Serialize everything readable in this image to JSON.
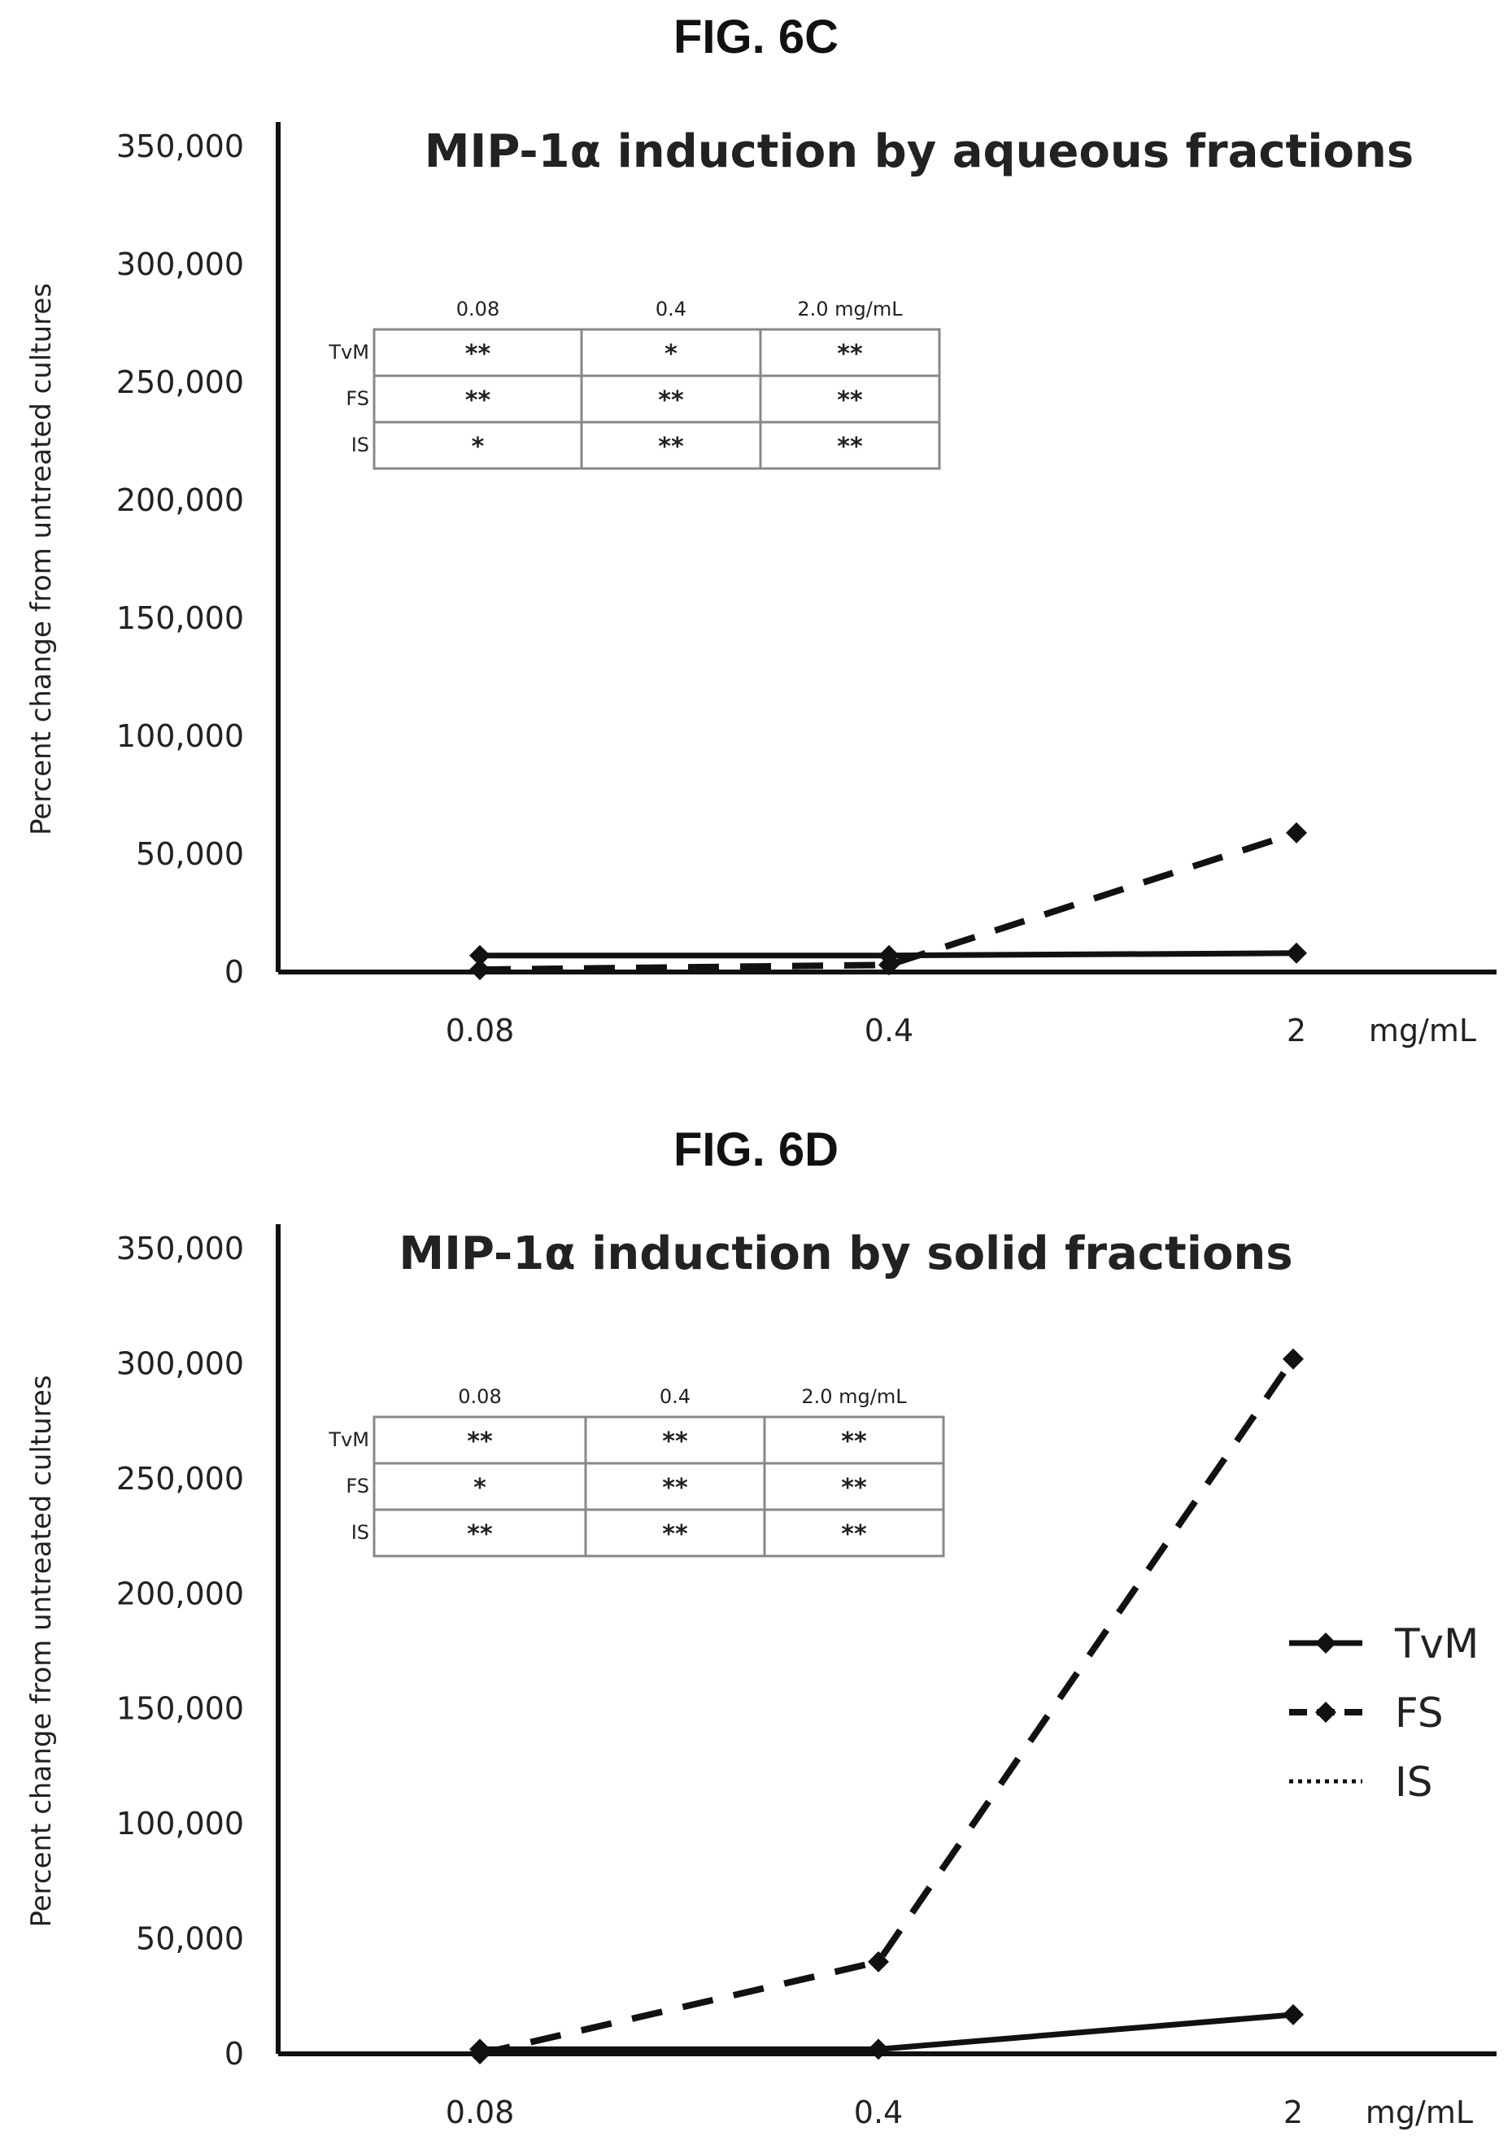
{
  "figures": [
    {
      "label": "FIG. 6C"
    },
    {
      "label": "FIG. 6D"
    }
  ],
  "chart_data": [
    {
      "type": "line",
      "title": "MIP-1α induction by aqueous fractions",
      "xlabel": "",
      "x_unit": "mg/mL",
      "ylabel": "Percent change from untreated cultures",
      "categories": [
        "0.08",
        "0.4",
        "2"
      ],
      "y_ticks": [
        "0",
        "50,000",
        "100,000",
        "150,000",
        "200,000",
        "250,000",
        "300,000",
        "350,000"
      ],
      "ylim": [
        0,
        350000
      ],
      "grid": false,
      "series": [
        {
          "name": "TvM",
          "style": "solid-diamond",
          "values": [
            7000,
            7000,
            8000
          ]
        },
        {
          "name": "FS",
          "style": "dashed",
          "values": [
            1000,
            3000,
            59000
          ]
        },
        {
          "name": "IS",
          "style": "dotted",
          "values": [
            0,
            0,
            0
          ]
        }
      ],
      "significance_table": {
        "columns": [
          "0.08",
          "0.4",
          "2.0 mg/mL"
        ],
        "rows": [
          {
            "name": "TvM",
            "cells": [
              "**",
              "*",
              "**"
            ]
          },
          {
            "name": "FS",
            "cells": [
              "**",
              "**",
              "**"
            ]
          },
          {
            "name": "IS",
            "cells": [
              "*",
              "**",
              "**"
            ]
          }
        ]
      }
    },
    {
      "type": "line",
      "title": "MIP-1α induction by solid fractions",
      "xlabel": "",
      "x_unit": "mg/mL",
      "ylabel": "Percent change from untreated cultures",
      "categories": [
        "0.08",
        "0.4",
        "2"
      ],
      "y_ticks": [
        "0",
        "50,000",
        "100,000",
        "150,000",
        "200,000",
        "250,000",
        "300,000",
        "350,000"
      ],
      "ylim": [
        0,
        350000
      ],
      "grid": false,
      "legend_position": "right",
      "series": [
        {
          "name": "TvM",
          "style": "solid-diamond",
          "values": [
            2000,
            2000,
            17000
          ]
        },
        {
          "name": "FS",
          "style": "dashed",
          "values": [
            0,
            40000,
            302000
          ]
        },
        {
          "name": "IS",
          "style": "dotted",
          "values": [
            0,
            0,
            0
          ]
        }
      ],
      "significance_table": {
        "columns": [
          "0.08",
          "0.4",
          "2.0 mg/mL"
        ],
        "rows": [
          {
            "name": "TvM",
            "cells": [
              "**",
              "**",
              "**"
            ]
          },
          {
            "name": "FS",
            "cells": [
              "*",
              "**",
              "**"
            ]
          },
          {
            "name": "IS",
            "cells": [
              "**",
              "**",
              "**"
            ]
          }
        ]
      }
    }
  ]
}
